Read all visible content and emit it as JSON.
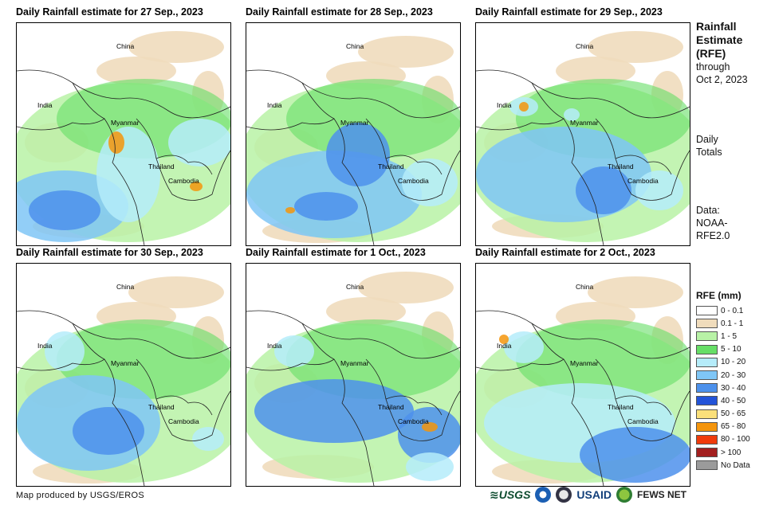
{
  "panels": [
    {
      "title": "Daily Rainfall estimate for 27 Sep., 2023"
    },
    {
      "title": "Daily Rainfall estimate for 28 Sep., 2023"
    },
    {
      "title": "Daily Rainfall estimate for 29 Sep., 2023"
    },
    {
      "title": "Daily Rainfall estimate for 30 Sep., 2023"
    },
    {
      "title": "Daily Rainfall estimate for 1 Oct., 2023"
    },
    {
      "title": "Daily Rainfall estimate for 2 Oct., 2023"
    }
  ],
  "map_labels": {
    "china": "China",
    "india": "India",
    "myanmar": "Myanmar",
    "thailand": "Thailand",
    "cambodia": "Cambodia"
  },
  "side": {
    "heading_1": "Rainfall",
    "heading_2": "Estimate",
    "heading_3": "(RFE)",
    "through_1": "through",
    "through_2": "Oct 2, 2023",
    "daily_1": "Daily",
    "daily_2": "Totals",
    "data_1": "Data:",
    "data_2": "NOAA-",
    "data_3": "RFE2.0"
  },
  "legend": {
    "title": "RFE (mm)",
    "items": [
      {
        "label": "0 - 0.1",
        "color": "#ffffff"
      },
      {
        "label": "0.1 - 1",
        "color": "#f0dcbc"
      },
      {
        "label": "1 - 5",
        "color": "#b8f2a6"
      },
      {
        "label": "5 - 10",
        "color": "#66de66"
      },
      {
        "label": "10 - 20",
        "color": "#b5ecfa"
      },
      {
        "label": "20 - 30",
        "color": "#7fc6f6"
      },
      {
        "label": "30 - 40",
        "color": "#4d91ec"
      },
      {
        "label": "40 - 50",
        "color": "#2353d8"
      },
      {
        "label": "50 - 65",
        "color": "#fbe07a"
      },
      {
        "label": "65 - 80",
        "color": "#f5950c"
      },
      {
        "label": "80 - 100",
        "color": "#f03b0c"
      },
      {
        "label": "> 100",
        "color": "#a31f1f"
      },
      {
        "label": "No Data",
        "color": "#9b9b9b"
      }
    ]
  },
  "footer": {
    "credit": "Map produced by USGS/EROS"
  },
  "logos": {
    "usgs": "USGS",
    "usaid": "USAID",
    "fews": "FEWS NET"
  }
}
